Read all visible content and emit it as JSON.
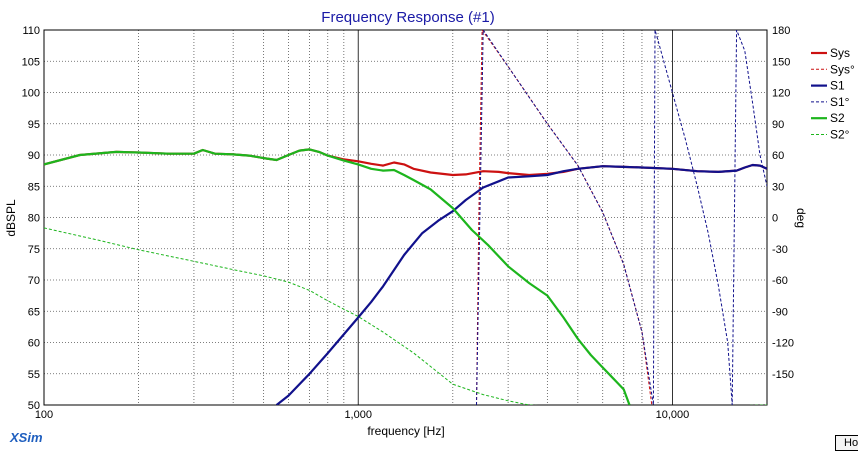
{
  "app": {
    "brand": "XSim",
    "corner_button": "Ho"
  },
  "chart_data": {
    "type": "line",
    "title": "Frequency Response (#1)",
    "xlabel": "frequency [Hz]",
    "ylabel": "dBSPL",
    "y2label": "deg",
    "x_scale": "log",
    "xlim": [
      100,
      20000
    ],
    "ylim": [
      50,
      110
    ],
    "y2lim": [
      -180,
      180
    ],
    "grid": true,
    "legend_position": "right",
    "x_tick_labels": [
      "100",
      "1,000",
      "10,000"
    ],
    "y_tick_labels": [
      "110",
      "105",
      "100",
      "95",
      "90",
      "85",
      "80",
      "75",
      "70",
      "65",
      "60",
      "55",
      "50"
    ],
    "y2_tick_labels": [
      "180",
      "150",
      "120",
      "90",
      "60",
      "30",
      "0",
      "-30",
      "-60",
      "-90",
      "-120",
      "-150"
    ],
    "series": [
      {
        "name": "Sys",
        "axis": "left",
        "color": "#cc1111",
        "dash": false,
        "x": [
          100,
          130,
          170,
          200,
          250,
          300,
          320,
          350,
          400,
          450,
          500,
          550,
          600,
          650,
          700,
          750,
          800,
          900,
          1000,
          1100,
          1200,
          1300,
          1400,
          1500,
          1700,
          2000,
          2200,
          2500,
          2800,
          3000,
          3500,
          4000,
          4500,
          5000,
          6000,
          7000,
          8000,
          10000,
          12000,
          14000,
          16000,
          17000,
          18000,
          19000,
          20000
        ],
        "y": [
          88.5,
          90,
          90.5,
          90.4,
          90.2,
          90.2,
          90.8,
          90.2,
          90.1,
          89.9,
          89.5,
          89.2,
          90,
          90.7,
          90.9,
          90.5,
          89.9,
          89.3,
          89,
          88.6,
          88.3,
          88.8,
          88.5,
          87.8,
          87.2,
          86.8,
          86.9,
          87.4,
          87.3,
          87.1,
          86.8,
          87,
          87.3,
          87.8,
          88.2,
          88.1,
          88,
          87.8,
          87.4,
          87.3,
          87.5,
          88,
          88.4,
          88.3,
          87.8
        ]
      },
      {
        "name": "Sys°",
        "axis": "right",
        "color": "#cc1111",
        "dash": true,
        "x": [
          2380,
          2420,
          2480,
          3000,
          4000,
          5000,
          6000,
          7000,
          8000,
          8600
        ],
        "y": [
          -180,
          0,
          180,
          145,
          90,
          50,
          5,
          -45,
          -110,
          -180
        ]
      },
      {
        "name": "S1",
        "axis": "left",
        "color": "#11118c",
        "dash": false,
        "x": [
          550,
          600,
          700,
          800,
          900,
          1000,
          1100,
          1200,
          1400,
          1600,
          1800,
          2000,
          2200,
          2500,
          2800,
          3000,
          3500,
          4000,
          4500,
          5000,
          6000,
          7000,
          8000,
          10000,
          12000,
          14000,
          16000,
          17000,
          18000,
          19000,
          20000
        ],
        "y": [
          50,
          51.5,
          55,
          58.3,
          61.3,
          64,
          66.5,
          69,
          74,
          77.5,
          79.5,
          81,
          82.8,
          84.8,
          85.8,
          86.4,
          86.6,
          86.8,
          87.4,
          87.8,
          88.2,
          88.1,
          88,
          87.8,
          87.4,
          87.3,
          87.5,
          88,
          88.4,
          88.3,
          87.8
        ]
      },
      {
        "name": "S1°",
        "axis": "right",
        "color": "#11118c",
        "dash": true,
        "x": [
          2380,
          2500,
          3000,
          4000,
          5000,
          6000,
          7000,
          8000,
          8700,
          8800,
          9000,
          10000,
          11000,
          12000,
          13000,
          14000,
          15000,
          15500,
          16000,
          17000,
          18000,
          19000,
          20000
        ],
        "y": [
          -180,
          180,
          145,
          90,
          50,
          5,
          -45,
          -110,
          -180,
          180,
          170,
          120,
          75,
          30,
          -15,
          -65,
          -120,
          -180,
          180,
          160,
          110,
          60,
          30
        ]
      },
      {
        "name": "S2",
        "axis": "left",
        "color": "#1db51d",
        "dash": false,
        "x": [
          100,
          130,
          170,
          200,
          250,
          300,
          320,
          350,
          400,
          450,
          500,
          550,
          600,
          650,
          700,
          750,
          800,
          900,
          1000,
          1100,
          1200,
          1300,
          1400,
          1500,
          1700,
          2000,
          2300,
          2600,
          3000,
          3500,
          4000,
          4500,
          5000,
          5500,
          6000,
          6500,
          7000,
          7300
        ],
        "y": [
          88.5,
          90,
          90.5,
          90.4,
          90.2,
          90.2,
          90.8,
          90.2,
          90.1,
          89.9,
          89.5,
          89.2,
          90,
          90.7,
          90.9,
          90.5,
          89.9,
          89.1,
          88.5,
          87.8,
          87.5,
          87.6,
          86.8,
          86,
          84.5,
          81.5,
          78,
          75.5,
          72.2,
          69.5,
          67.5,
          64,
          60.6,
          58,
          56,
          54.2,
          52.5,
          50
        ]
      },
      {
        "name": "S2°",
        "axis": "right",
        "color": "#1db51d",
        "dash": true,
        "x": [
          100,
          150,
          200,
          300,
          400,
          500,
          600,
          700,
          800,
          900,
          1000,
          1200,
          1500,
          2000,
          2500,
          3000,
          3500,
          4000,
          5000,
          6000,
          8000,
          10000,
          15000,
          20000
        ],
        "y": [
          -10,
          -22,
          -31,
          -42,
          -50,
          -56,
          -62,
          -70,
          -80,
          -88,
          -95,
          -110,
          -130,
          -160,
          -170,
          -176,
          -180,
          -181,
          -182,
          -182,
          -182,
          -182,
          -181,
          -180
        ]
      }
    ]
  }
}
